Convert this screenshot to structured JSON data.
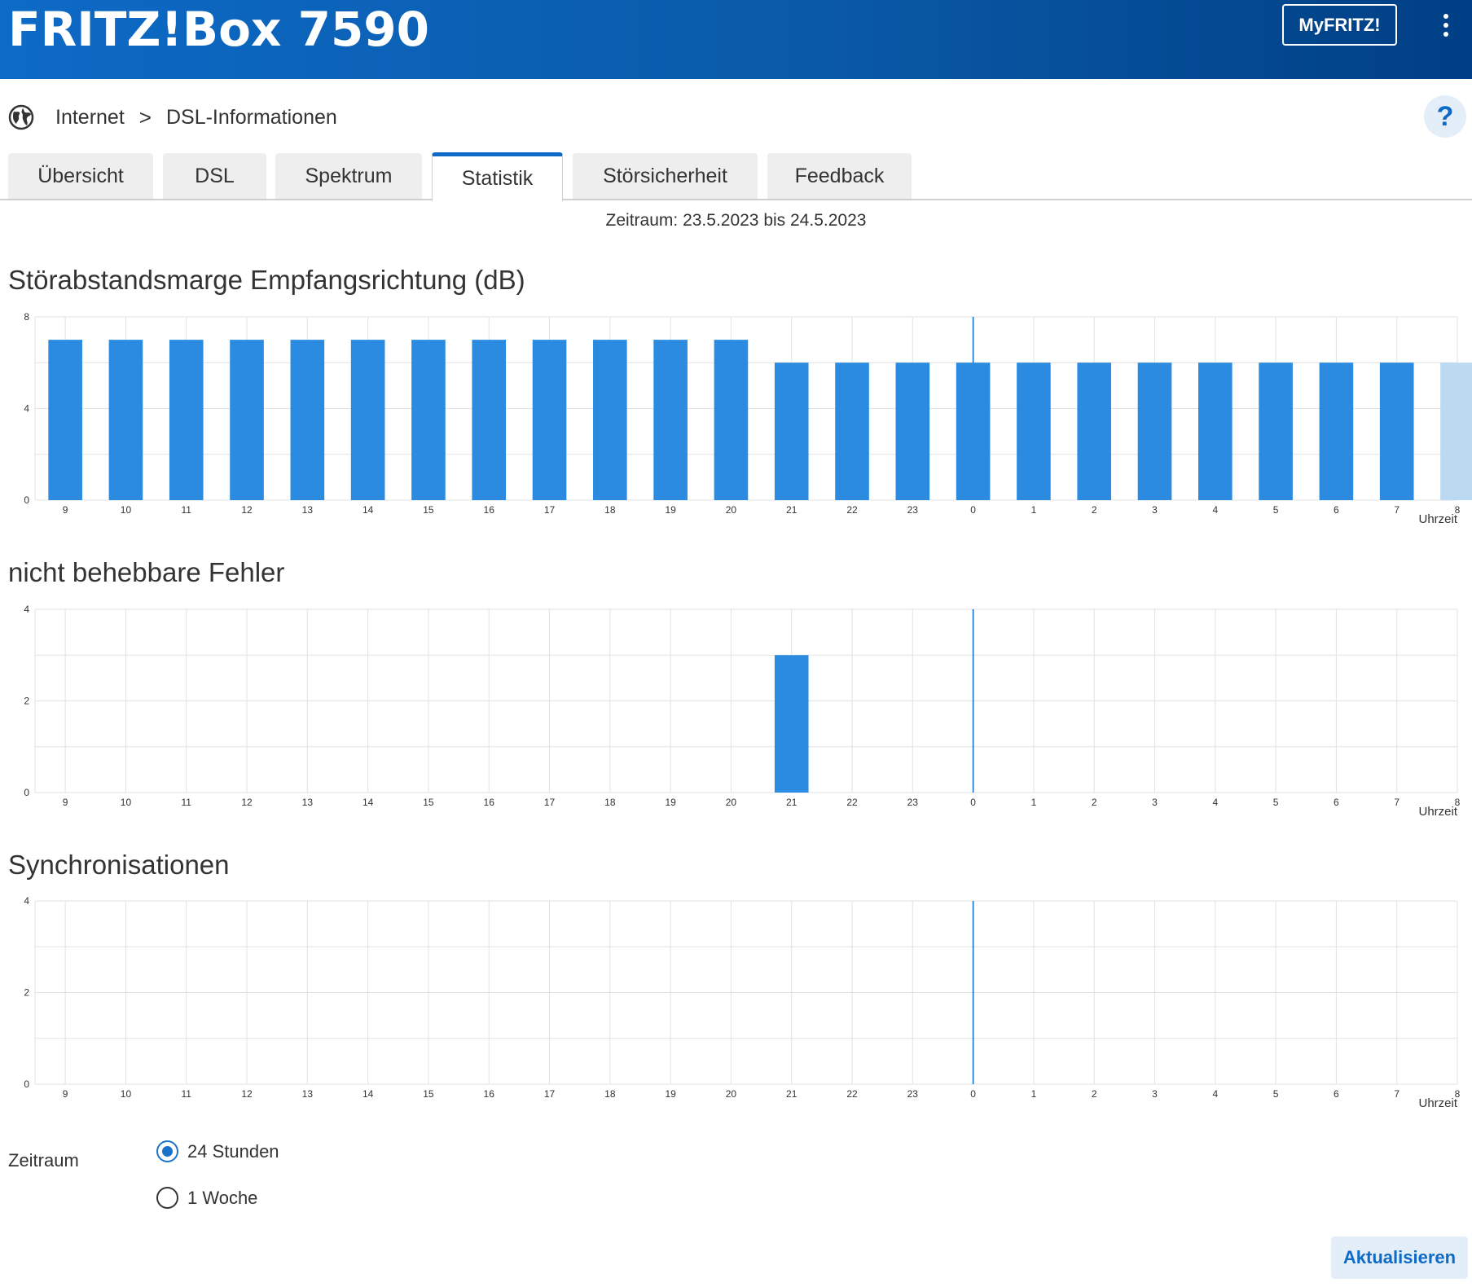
{
  "header": {
    "brand": "FRITZ!Box 7590",
    "myfritz_label": "MyFRITZ!"
  },
  "breadcrumb": {
    "section": "Internet",
    "separator": ">",
    "page": "DSL-Informationen",
    "help": "?"
  },
  "tabs": [
    {
      "label": "Übersicht"
    },
    {
      "label": "DSL"
    },
    {
      "label": "Spektrum"
    },
    {
      "label": "Statistik",
      "active": true
    },
    {
      "label": "Störsicherheit"
    },
    {
      "label": "Feedback"
    }
  ],
  "period_text": "Zeitraum: 23.5.2023 bis 24.5.2023",
  "colors": {
    "bar": "#2a8be0",
    "bar_current": "#bcd9f2",
    "accent": "#0d6ac6",
    "grid": "#e2e2e2",
    "marker": "#0d6ac6"
  },
  "chart_data": [
    {
      "type": "bar",
      "title": "Störabstandsmarge Empfangsrichtung (dB)",
      "xlabel": "Uhrzeit",
      "ylabel": "",
      "ylim": [
        0,
        8
      ],
      "yticks": [
        "0",
        "4",
        "8"
      ],
      "categories": [
        "9",
        "10",
        "11",
        "12",
        "13",
        "14",
        "15",
        "16",
        "17",
        "18",
        "19",
        "20",
        "21",
        "22",
        "23",
        "0",
        "1",
        "2",
        "3",
        "4",
        "5",
        "6",
        "7",
        "8"
      ],
      "values": [
        7,
        7,
        7,
        7,
        7,
        7,
        7,
        7,
        7,
        7,
        7,
        7,
        6,
        6,
        6,
        6,
        6,
        6,
        6,
        6,
        6,
        6,
        6,
        6
      ],
      "current_index": 23,
      "day_marker": "0"
    },
    {
      "type": "bar",
      "title": "nicht behebbare Fehler",
      "xlabel": "Uhrzeit",
      "ylabel": "",
      "ylim": [
        0,
        4
      ],
      "yticks": [
        "0",
        "2",
        "4"
      ],
      "categories": [
        "9",
        "10",
        "11",
        "12",
        "13",
        "14",
        "15",
        "16",
        "17",
        "18",
        "19",
        "20",
        "21",
        "22",
        "23",
        "0",
        "1",
        "2",
        "3",
        "4",
        "5",
        "6",
        "7",
        "8"
      ],
      "values": [
        0,
        0,
        0,
        0,
        0,
        0,
        0,
        0,
        0,
        0,
        0,
        0,
        3,
        0,
        0,
        0,
        0,
        0,
        0,
        0,
        0,
        0,
        0,
        0
      ],
      "current_index": null,
      "day_marker": "0"
    },
    {
      "type": "bar",
      "title": "Synchronisationen",
      "xlabel": "Uhrzeit",
      "ylabel": "",
      "ylim": [
        0,
        4
      ],
      "yticks": [
        "0",
        "2",
        "4"
      ],
      "categories": [
        "9",
        "10",
        "11",
        "12",
        "13",
        "14",
        "15",
        "16",
        "17",
        "18",
        "19",
        "20",
        "21",
        "22",
        "23",
        "0",
        "1",
        "2",
        "3",
        "4",
        "5",
        "6",
        "7",
        "8"
      ],
      "values": [
        0,
        0,
        0,
        0,
        0,
        0,
        0,
        0,
        0,
        0,
        0,
        0,
        0,
        0,
        0,
        0,
        0,
        0,
        0,
        0,
        0,
        0,
        0,
        0
      ],
      "current_index": null,
      "day_marker": "0"
    }
  ],
  "form": {
    "label": "Zeitraum",
    "options": [
      {
        "label": "24 Stunden",
        "checked": true
      },
      {
        "label": "1 Woche",
        "checked": false
      }
    ],
    "submit_label": "Aktualisieren"
  }
}
